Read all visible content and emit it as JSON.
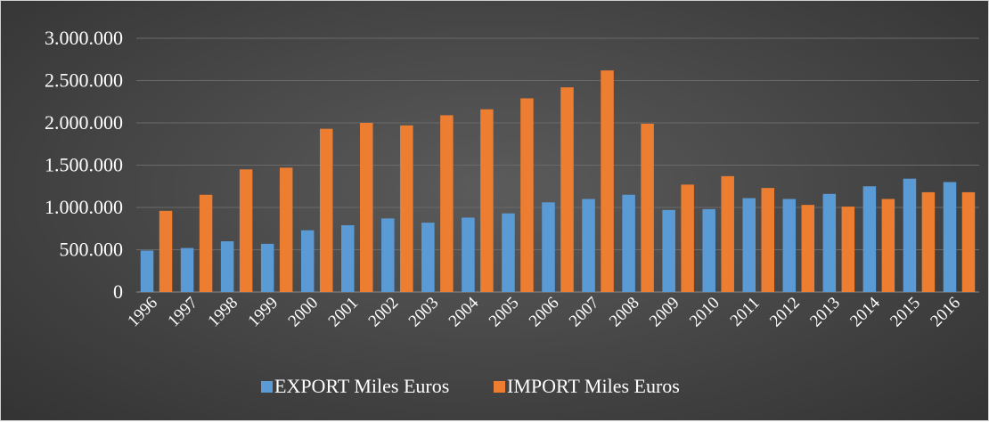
{
  "chart_data": {
    "type": "bar",
    "categories": [
      "1996",
      "1997",
      "1998",
      "1999",
      "2000",
      "2001",
      "2002",
      "2003",
      "2004",
      "2005",
      "2006",
      "2007",
      "2008",
      "2009",
      "2010",
      "2011",
      "2012",
      "2013",
      "2014",
      "2015",
      "2016"
    ],
    "series": [
      {
        "name": "EXPORT Miles Euros",
        "color": "#5b9bd5",
        "values": [
          490000,
          520000,
          600000,
          570000,
          730000,
          790000,
          870000,
          820000,
          880000,
          930000,
          1060000,
          1100000,
          1150000,
          970000,
          980000,
          1110000,
          1100000,
          1160000,
          1250000,
          1340000,
          1300000
        ]
      },
      {
        "name": "IMPORT Miles Euros",
        "color": "#ed7d31",
        "values": [
          960000,
          1150000,
          1450000,
          1470000,
          1930000,
          2000000,
          1970000,
          2090000,
          2160000,
          2290000,
          2420000,
          2620000,
          1990000,
          1270000,
          1370000,
          1230000,
          1030000,
          1010000,
          1100000,
          1180000,
          1180000
        ]
      }
    ],
    "yticks": [
      "0",
      "500.000",
      "1.000.000",
      "1.500.000",
      "2.000.000",
      "2.500.000",
      "3.000.000"
    ],
    "ylim": [
      0,
      3000000
    ],
    "title": "",
    "xlabel": "",
    "ylabel": "",
    "grid": true,
    "legend_position": "bottom"
  }
}
